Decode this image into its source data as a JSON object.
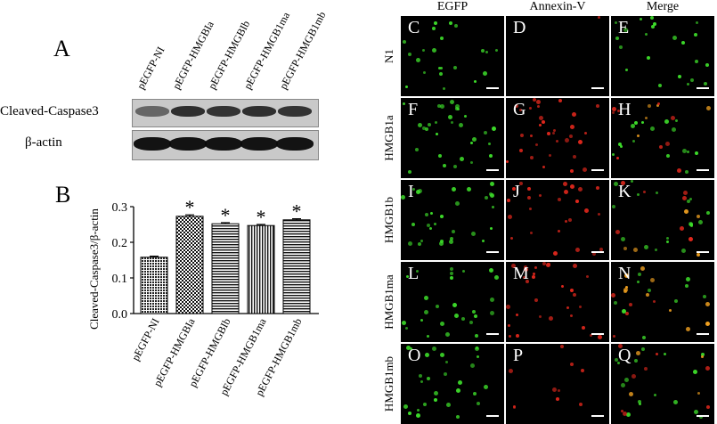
{
  "panel_a": {
    "letter": "A",
    "lanes": [
      "pEGFP-NI",
      "pEGFP-HMGBIa",
      "pEGFP-HMGBIb",
      "pEGFP-HMGB1ma",
      "pEGFP-HMGB1mb"
    ],
    "rows": [
      "Cleaved-Caspase3",
      "β-actin"
    ]
  },
  "panel_b": {
    "letter": "B",
    "star": "*"
  },
  "chart_data": {
    "type": "bar",
    "categories": [
      "pEGFP-NI",
      "pEGFP-HMGBIa",
      "pEGFP-HMGBIb",
      "pEGFP-HMGB1ma",
      "pEGFP-HMGB1mb"
    ],
    "values": [
      0.158,
      0.273,
      0.252,
      0.247,
      0.263
    ],
    "errors": [
      0.003,
      0.004,
      0.003,
      0.003,
      0.003
    ],
    "significant": [
      false,
      true,
      true,
      true,
      true
    ],
    "patterns": [
      "dense-dots",
      "checker",
      "horizontal-lines",
      "vertical-lines",
      "horizontal-lines"
    ],
    "ylabel": "Cleaved-Caspase3/β-actin",
    "xlabel": "",
    "ylim": [
      0,
      0.3
    ],
    "yticks": [
      "0.0",
      "0.1",
      "0.2",
      "0.3"
    ],
    "grid": false
  },
  "micrographs": {
    "columns": [
      "EGFP",
      "Annexin-V",
      "Merge"
    ],
    "rows": [
      {
        "label": "N1",
        "panels": [
          "C",
          "D",
          "E"
        ]
      },
      {
        "label": "HMGB1a",
        "panels": [
          "F",
          "G",
          "H"
        ]
      },
      {
        "label": "HMGB1b",
        "panels": [
          "I",
          "J",
          "K"
        ]
      },
      {
        "label": "HMGB1ma",
        "panels": [
          "L",
          "M",
          "N"
        ]
      },
      {
        "label": "HMGB1mb",
        "panels": [
          "O",
          "P",
          "Q"
        ]
      }
    ],
    "colors": {
      "egfp": "#3ddc2a",
      "annexin": "#e0271c",
      "merge": "#f0a020"
    }
  }
}
